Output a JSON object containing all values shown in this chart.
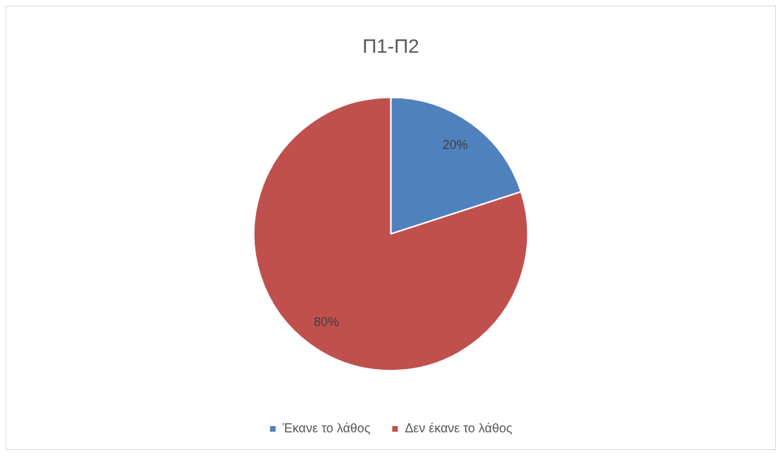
{
  "chart_data": {
    "type": "pie",
    "title": "Π1-Π2",
    "categories": [
      "Έκανε το λάθος",
      "Δεν έκανε το λάθος"
    ],
    "values": [
      20,
      80
    ],
    "colors": [
      "#4f81bd",
      "#c0504d"
    ],
    "value_labels": [
      "20%",
      "80%"
    ],
    "legend": "bottom"
  }
}
